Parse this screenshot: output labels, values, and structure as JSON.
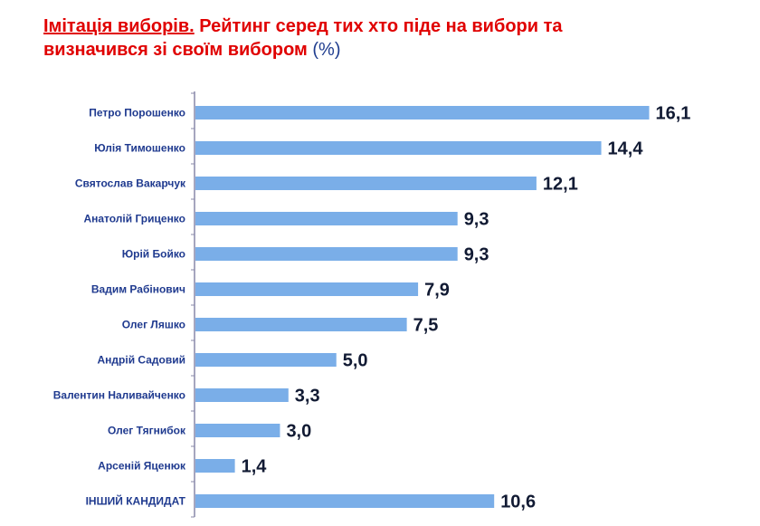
{
  "title": {
    "part1": "Імітація виборів.",
    "part2": " Рейтинг серед тих хто піде на вибори та визначився зі своїм вибором ",
    "unit": "(%)"
  },
  "colors": {
    "bar": "#7aaee8",
    "title": "#e00000",
    "label": "#1f3a8f",
    "value": "#111a33",
    "axis": "#8888aa"
  },
  "chart_data": {
    "type": "bar",
    "orientation": "horizontal",
    "title": "Імітація виборів. Рейтинг серед тих хто піде на вибори та визначився зі своїм вибором (%)",
    "categories": [
      "Петро Порошенко",
      "Юлія Тимошенко",
      "Святослав Вакарчук",
      "Анатолій Гриценко",
      "Юрій Бойко",
      "Вадим Рабінович",
      "Олег Ляшко",
      "Андрій Садовий",
      "Валентин Наливайченко",
      "Олег Тягнибок",
      "Арсеній Яценюк",
      "ІНШИЙ КАНДИДАТ"
    ],
    "values": [
      16.1,
      14.4,
      12.1,
      9.3,
      9.3,
      7.9,
      7.5,
      5.0,
      3.3,
      3.0,
      1.4,
      10.6
    ],
    "value_labels": [
      "16,1",
      "14,4",
      "12,1",
      "9,3",
      "9,3",
      "7,9",
      "7,5",
      "5,0",
      "3,3",
      "3,0",
      "1,4",
      "10,6"
    ],
    "xlim": [
      0,
      19
    ],
    "grid": false,
    "legend": "none"
  }
}
